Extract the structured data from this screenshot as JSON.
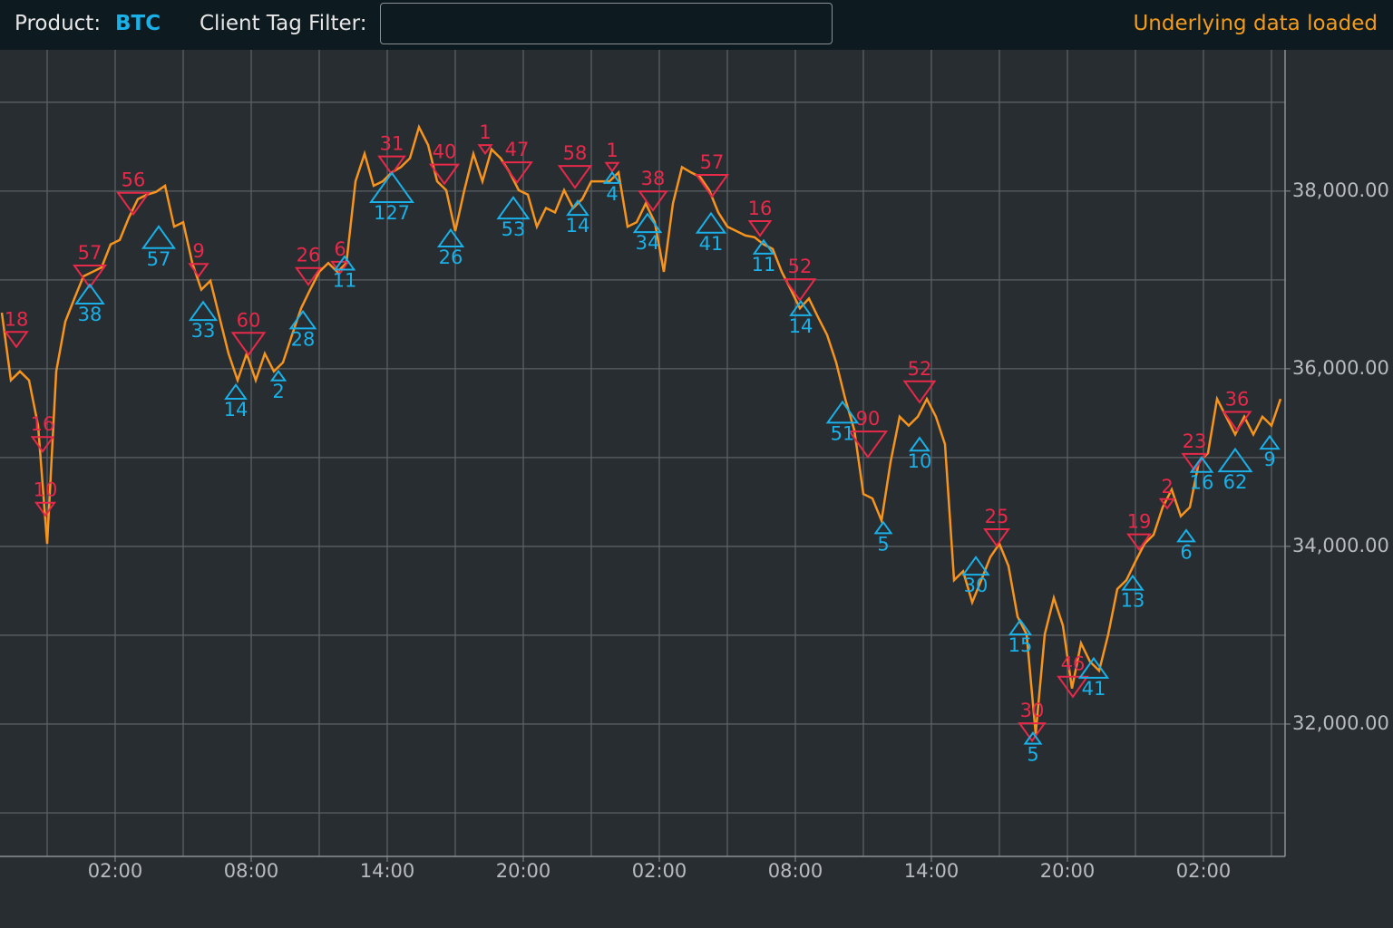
{
  "header": {
    "product_label": "Product:",
    "product": "BTC",
    "filter_label": "Client Tag Filter:",
    "status": "Underlying data loaded"
  },
  "chart_data": {
    "type": "line",
    "color": "#f7941d",
    "grid": true,
    "xlim": [
      -3.08,
      53.6
    ],
    "xticks": [
      {
        "value": 2,
        "label": "02:00"
      },
      {
        "value": 8,
        "label": "08:00"
      },
      {
        "value": 14,
        "label": "14:00"
      },
      {
        "value": 20,
        "label": "20:00"
      },
      {
        "value": 26,
        "label": "02:00"
      },
      {
        "value": 32,
        "label": "08:00"
      },
      {
        "value": 38,
        "label": "14:00"
      },
      {
        "value": 44,
        "label": "20:00"
      },
      {
        "value": 50,
        "label": "02:00"
      }
    ],
    "xminorticks": [
      -1,
      5,
      11,
      17,
      23,
      29,
      35,
      41,
      47,
      53
    ],
    "ylim": [
      30510,
      39590
    ],
    "yticks": [
      {
        "value": 32000,
        "label": "32,000.00"
      },
      {
        "value": 34000,
        "label": "34,000.00"
      },
      {
        "value": 36000,
        "label": "36,000.00"
      },
      {
        "value": 38000,
        "label": "38,000.00"
      }
    ],
    "yminorticks": [
      31000,
      33000,
      35000,
      37000,
      39000
    ],
    "x": [
      -3,
      -2.6,
      -2.2,
      -1.8,
      -1.4,
      -1,
      -0.6,
      -0.2,
      0.2,
      0.6,
      1,
      1.4,
      1.8,
      2.2,
      2.6,
      3,
      3.4,
      3.8,
      4.2,
      4.6,
      5,
      5.4,
      5.8,
      6.2,
      6.6,
      7,
      7.4,
      7.8,
      8.2,
      8.6,
      9,
      9.4,
      9.8,
      10.2,
      10.6,
      11,
      11.4,
      11.8,
      12.2,
      12.6,
      13,
      13.4,
      13.8,
      14.2,
      14.6,
      15,
      15.4,
      15.8,
      16.2,
      16.6,
      17,
      17.4,
      17.8,
      18.2,
      18.6,
      19,
      19.4,
      19.8,
      20.2,
      20.6,
      21,
      21.4,
      21.8,
      22.2,
      22.6,
      23,
      23.4,
      23.8,
      24.2,
      24.6,
      25,
      25.4,
      25.8,
      26.2,
      26.6,
      27,
      27.4,
      27.8,
      28.2,
      28.6,
      29,
      29.4,
      29.8,
      30.2,
      30.6,
      31,
      31.4,
      31.8,
      32.2,
      32.6,
      33,
      33.4,
      33.8,
      34.2,
      34.6,
      35,
      35.4,
      35.8,
      36.2,
      36.6,
      37,
      37.4,
      37.8,
      38.2,
      38.6,
      39,
      39.4,
      39.8,
      40.2,
      40.6,
      41,
      41.4,
      41.8,
      42.2,
      42.6,
      43,
      43.4,
      43.8,
      44.2,
      44.6,
      45,
      45.4,
      45.8,
      46.2,
      46.6,
      47,
      47.4,
      47.8,
      48.2,
      48.6,
      49,
      49.4,
      49.8,
      50.2,
      50.6,
      51,
      51.4,
      51.8,
      52.2,
      52.6,
      53,
      53.4
    ],
    "values": [
      36630,
      35870,
      35970,
      35870,
      35360,
      34030,
      35970,
      36530,
      36790,
      37040,
      37090,
      37140,
      37400,
      37450,
      37700,
      37910,
      37960,
      37990,
      38060,
      37600,
      37650,
      37190,
      36890,
      36990,
      36580,
      36170,
      35870,
      36170,
      35870,
      36170,
      35970,
      36070,
      36380,
      36680,
      36890,
      37090,
      37190,
      37090,
      37190,
      38110,
      38420,
      38060,
      38110,
      38210,
      38270,
      38370,
      38720,
      38520,
      38110,
      38010,
      37550,
      38010,
      38420,
      38110,
      38470,
      38370,
      38210,
      38010,
      37960,
      37600,
      37810,
      37760,
      38010,
      37810,
      37910,
      38110,
      38110,
      38110,
      38210,
      37600,
      37650,
      37860,
      37650,
      37090,
      37860,
      38270,
      38210,
      38160,
      38010,
      37760,
      37600,
      37550,
      37500,
      37480,
      37400,
      37350,
      37090,
      36890,
      36680,
      36790,
      36580,
      36380,
      36070,
      35660,
      35310,
      34590,
      34540,
      34290,
      34950,
      35460,
      35360,
      35460,
      35660,
      35460,
      35150,
      33620,
      33720,
      33370,
      33620,
      33880,
      34030,
      33780,
      33210,
      33010,
      31890,
      33010,
      33420,
      33110,
      32400,
      32910,
      32700,
      32600,
      33010,
      33520,
      33620,
      33830,
      34030,
      34130,
      34440,
      34640,
      34340,
      34440,
      34950,
      35050,
      35660,
      35460,
      35260,
      35460,
      35260,
      35460,
      35360,
      35660
    ],
    "trades": {
      "buy": {
        "color": "#1ab0e8",
        "x": [
          0.88,
          3.92,
          5.88,
          7.32,
          9.2,
          10.28,
          12.12,
          14.2,
          16.8,
          19.56,
          22.4,
          23.92,
          25.48,
          28.28,
          30.6,
          32.24,
          34.08,
          35.88,
          37.48,
          39.96,
          41.92,
          42.48,
          45.16,
          46.88,
          49.24,
          49.92,
          51.4,
          52.92
        ],
        "price": [
          36840,
          37480,
          36650,
          35740,
          35920,
          36550,
          37190,
          38040,
          37470,
          37810,
          37810,
          38150,
          37640,
          37640,
          37370,
          36680,
          35510,
          34210,
          35150,
          33780,
          33090,
          31840,
          32630,
          33590,
          34120,
          34920,
          34970,
          35170
        ],
        "qty": [
          38,
          57,
          33,
          14,
          2,
          28,
          11,
          127,
          26,
          53,
          14,
          4,
          34,
          41,
          11,
          14,
          51,
          5,
          10,
          30,
          15,
          5,
          41,
          13,
          6,
          16,
          62,
          9
        ]
      },
      "sell": {
        "color": "#e8294a",
        "x": [
          -2.36,
          2.8,
          0.88,
          -1.2,
          -1.08,
          5.68,
          7.88,
          10.52,
          11.92,
          14.2,
          16.52,
          18.32,
          19.72,
          22.28,
          23.92,
          25.72,
          28.32,
          30.44,
          32.2,
          35.2,
          37.48,
          40.88,
          42.44,
          44.24,
          47.16,
          48.4,
          49.6,
          51.48
        ],
        "price": [
          36330,
          37860,
          37040,
          35150,
          34420,
          37110,
          36280,
          37040,
          37140,
          38290,
          38190,
          38470,
          38210,
          38160,
          38270,
          37890,
          38060,
          37580,
          36890,
          35150,
          35740,
          34100,
          31910,
          32420,
          34050,
          34480,
          34950,
          35410
        ],
        "qty": [
          18,
          56,
          57,
          16,
          10,
          9,
          60,
          26,
          6,
          31,
          40,
          1,
          47,
          58,
          1,
          38,
          57,
          16,
          52,
          90,
          52,
          25,
          30,
          46,
          19,
          2,
          23,
          36
        ]
      }
    }
  }
}
